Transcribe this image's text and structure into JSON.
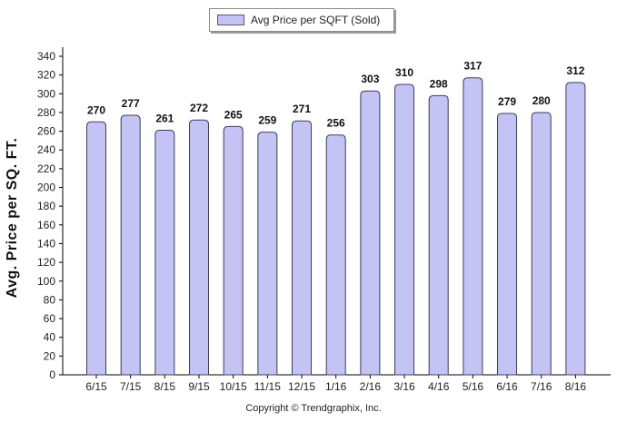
{
  "legend": {
    "label": "Avg Price per SQFT (Sold)"
  },
  "footer": {
    "copyright": "Copyright © Trendgraphix, Inc."
  },
  "colors": {
    "bar_fill": "#c4c4f4",
    "bar_stroke": "#3c3c5a",
    "axis": "#000000"
  },
  "chart_data": {
    "type": "bar",
    "title": "",
    "xlabel": "",
    "ylabel": "Avg. Price per SQ. FT.",
    "ylim": [
      0,
      340
    ],
    "ytick_step": 20,
    "grid": false,
    "legend_position": "top-center",
    "categories": [
      "6/15",
      "7/15",
      "8/15",
      "9/15",
      "10/15",
      "11/15",
      "12/15",
      "1/16",
      "2/16",
      "3/16",
      "4/16",
      "5/16",
      "6/16",
      "7/16",
      "8/16"
    ],
    "series": [
      {
        "name": "Avg Price per SQFT (Sold)",
        "values": [
          270,
          277,
          261,
          272,
          265,
          259,
          271,
          256,
          303,
          310,
          298,
          317,
          279,
          280,
          312
        ]
      }
    ]
  }
}
